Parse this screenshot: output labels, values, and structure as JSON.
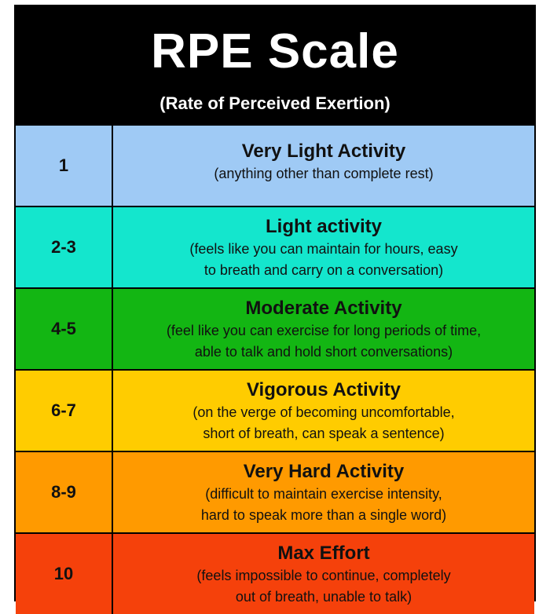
{
  "header": {
    "title": "RPE Scale",
    "subtitle": "(Rate of Perceived Exertion)"
  },
  "rows": [
    {
      "level": "1",
      "heading": "Very Light Activity",
      "desc_lines": [
        "(anything other than complete rest)"
      ],
      "color": "#9fcaf5"
    },
    {
      "level": "2-3",
      "heading": "Light activity",
      "desc_lines": [
        "(feels like you can maintain for hours, easy",
        "to breath and carry on a conversation)"
      ],
      "color": "#14e6cd"
    },
    {
      "level": "4-5",
      "heading": "Moderate Activity",
      "desc_lines": [
        "(feel like you can exercise for long periods of time,",
        "able to talk and hold short conversations)"
      ],
      "color": "#13b613"
    },
    {
      "level": "6-7",
      "heading": "Vigorous Activity",
      "desc_lines": [
        "(on the verge of becoming uncomfortable,",
        "short of breath, can speak a sentence)"
      ],
      "color": "#ffcc00"
    },
    {
      "level": "8-9",
      "heading": "Very Hard Activity",
      "desc_lines": [
        "(difficult to maintain exercise intensity,",
        "hard to speak more than a single word)"
      ],
      "color": "#ff9a00"
    },
    {
      "level": "10",
      "heading": "Max Effort",
      "desc_lines": [
        "(feels impossible to continue, completely",
        "out of breath, unable to talk)"
      ],
      "color": "#f5410b"
    }
  ]
}
